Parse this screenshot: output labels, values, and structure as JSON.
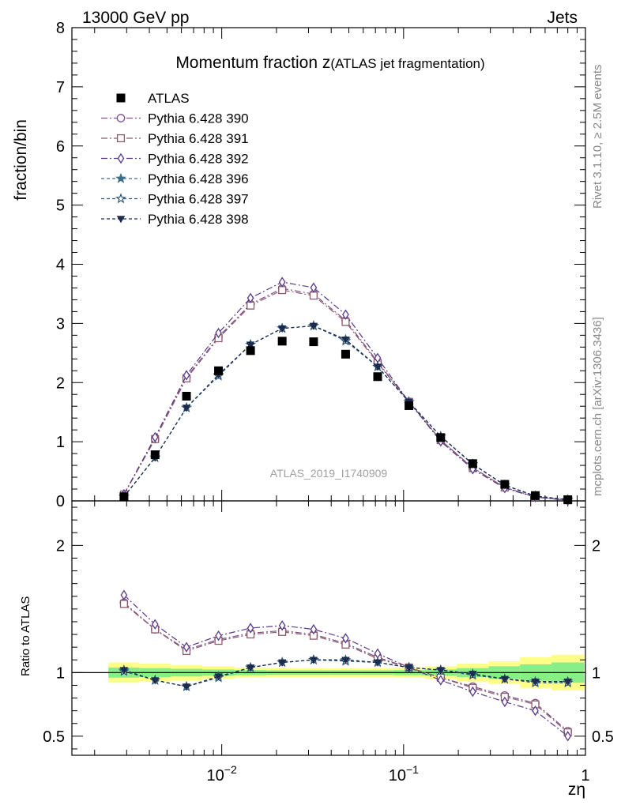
{
  "header": {
    "left": "13000 GeV pp",
    "right": "Jets"
  },
  "side_labels": {
    "rivet": "Rivet 3.1.10, ≥ 2.5M events",
    "mcplots": "mcplots.cern.ch [arXiv:1306.3436]"
  },
  "chart_data": {
    "type": "line",
    "title_main": "Momentum fraction z",
    "title_sub": "(ATLAS jet fragmentation)",
    "analysis_label": "ATLAS_2019_I1740909",
    "xlabel": "zη",
    "ylabel_top": "fraction/bin",
    "ylabel_bottom": "Ratio to ATLAS",
    "xscale": "log",
    "xlim": [
      0.0015,
      1.0
    ],
    "x_ticks": [
      {
        "value": 0.01,
        "base": "10",
        "exp": "−2"
      },
      {
        "value": 0.1,
        "base": "10",
        "exp": "−1"
      },
      {
        "value": 1,
        "base": "1",
        "exp": ""
      }
    ],
    "top_ylim": [
      0,
      8
    ],
    "top_yticks": [
      "0",
      "1",
      "2",
      "3",
      "4",
      "5",
      "6",
      "7",
      "8"
    ],
    "bottom_ylim": [
      0.35,
      2.35
    ],
    "bottom_yticks": [
      "0.5",
      "1",
      "2"
    ],
    "x": [
      0.0029,
      0.0043,
      0.0064,
      0.0096,
      0.0144,
      0.0215,
      0.032,
      0.048,
      0.072,
      0.107,
      0.16,
      0.24,
      0.36,
      0.53,
      0.8
    ],
    "data": {
      "name": "ATLAS",
      "values": [
        0.07,
        0.78,
        1.77,
        2.2,
        2.54,
        2.7,
        2.69,
        2.48,
        2.1,
        1.61,
        1.07,
        0.63,
        0.28,
        0.09,
        0.02
      ]
    },
    "ratio_band_yellow": [
      0.08,
      0.07,
      0.06,
      0.05,
      0.04,
      0.035,
      0.035,
      0.035,
      0.035,
      0.04,
      0.05,
      0.07,
      0.09,
      0.12,
      0.14
    ],
    "ratio_band_green": [
      0.04,
      0.035,
      0.03,
      0.025,
      0.02,
      0.018,
      0.018,
      0.018,
      0.018,
      0.02,
      0.025,
      0.035,
      0.05,
      0.065,
      0.08
    ],
    "series": [
      {
        "name": "Pythia 6.428 390",
        "color": "#7b4f8a",
        "marker": "circle",
        "dash": "8,3,2,3",
        "ratio": [
          1.55,
          1.34,
          1.18,
          1.26,
          1.31,
          1.33,
          1.3,
          1.23,
          1.12,
          1.04,
          0.96,
          0.89,
          0.82,
          0.76,
          0.54
        ]
      },
      {
        "name": "Pythia 6.428 391",
        "color": "#8b5a6a",
        "marker": "square",
        "dash": "8,3,2,3",
        "ratio": [
          1.54,
          1.34,
          1.17,
          1.25,
          1.3,
          1.32,
          1.29,
          1.22,
          1.11,
          1.04,
          0.96,
          0.88,
          0.81,
          0.75,
          0.53
        ]
      },
      {
        "name": "Pythia 6.428 392",
        "color": "#5a3a8a",
        "marker": "diamond",
        "dash": "8,3,2,3",
        "ratio": [
          1.61,
          1.38,
          1.2,
          1.29,
          1.35,
          1.37,
          1.34,
          1.27,
          1.15,
          1.04,
          0.94,
          0.85,
          0.77,
          0.7,
          0.5
        ]
      },
      {
        "name": "Pythia 6.428 396",
        "color": "#3d6f8a",
        "marker": "star",
        "dash": "4,3",
        "ratio": [
          1.02,
          0.94,
          0.89,
          0.97,
          1.04,
          1.08,
          1.1,
          1.1,
          1.08,
          1.04,
          1.02,
          0.99,
          0.95,
          0.93,
          0.93
        ]
      },
      {
        "name": "Pythia 6.428 397",
        "color": "#2f5878",
        "marker": "star-open",
        "dash": "4,3",
        "ratio": [
          1.01,
          0.94,
          0.89,
          0.96,
          1.04,
          1.08,
          1.1,
          1.09,
          1.08,
          1.04,
          1.02,
          0.98,
          0.95,
          0.92,
          0.92
        ]
      },
      {
        "name": "Pythia 6.428 398",
        "color": "#1d2b4d",
        "marker": "triangle-down",
        "dash": "4,3",
        "ratio": [
          1.02,
          0.94,
          0.89,
          0.97,
          1.04,
          1.08,
          1.1,
          1.1,
          1.08,
          1.04,
          1.02,
          0.99,
          0.95,
          0.93,
          0.93
        ]
      }
    ],
    "grid": false,
    "legend_position": "top-left"
  }
}
